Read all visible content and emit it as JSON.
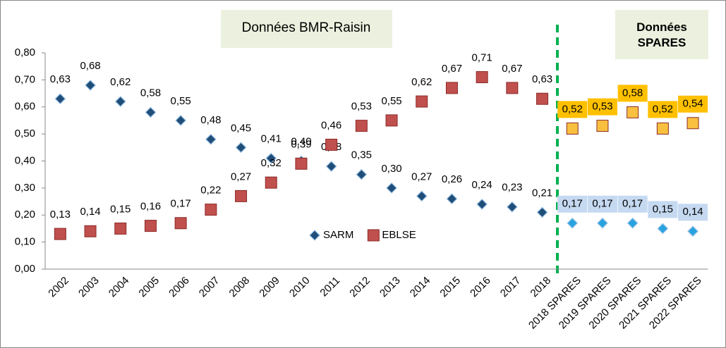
{
  "chart_data": {
    "type": "scatter",
    "categories": [
      "2002",
      "2003",
      "2004",
      "2005",
      "2006",
      "2007",
      "2008",
      "2009",
      "2010",
      "2011",
      "2012",
      "2013",
      "2014",
      "2015",
      "2016",
      "2017",
      "2018",
      "2018 SPARES",
      "2019 SPARES",
      "2020 SPARES",
      "2021 SPARES",
      "2022 SPARES"
    ],
    "series": [
      {
        "name": "SARM",
        "marker": "diamond",
        "color": "#1f4e79",
        "point_colors": [
          "#1f4e79",
          "#1f4e79",
          "#1f4e79",
          "#1f4e79",
          "#1f4e79",
          "#1f4e79",
          "#1f4e79",
          "#1f4e79",
          "#1f4e79",
          "#1f4e79",
          "#1f4e79",
          "#1f4e79",
          "#1f4e79",
          "#1f4e79",
          "#1f4e79",
          "#1f4e79",
          "#1f4e79",
          "#29a3df",
          "#29a3df",
          "#29a3df",
          "#29a3df",
          "#29a3df"
        ],
        "label_colors": [
          "none",
          "none",
          "none",
          "none",
          "none",
          "none",
          "none",
          "none",
          "none",
          "none",
          "none",
          "none",
          "none",
          "none",
          "none",
          "none",
          "none",
          "#c5d9f1",
          "#c5d9f1",
          "#c5d9f1",
          "#c5d9f1",
          "#c5d9f1"
        ],
        "values": [
          0.63,
          0.68,
          0.62,
          0.58,
          0.55,
          0.48,
          0.45,
          0.41,
          0.4,
          0.38,
          0.35,
          0.3,
          0.27,
          0.26,
          0.24,
          0.23,
          0.21,
          0.17,
          0.17,
          0.17,
          0.15,
          0.14
        ],
        "value_labels": [
          "0,63",
          "0,68",
          "0,62",
          "0,58",
          "0,55",
          "0,48",
          "0,45",
          "0,41",
          "0,40",
          "0,38",
          "0,35",
          "0,30",
          "0,27",
          "0,26",
          "0,24",
          "0,23",
          "0,21",
          "0,17",
          "0,17",
          "0,17",
          "0,15",
          "0,14"
        ]
      },
      {
        "name": "EBLSE",
        "marker": "square",
        "color": "#c0504d",
        "point_colors": [
          "#c0504d",
          "#c0504d",
          "#c0504d",
          "#c0504d",
          "#c0504d",
          "#c0504d",
          "#c0504d",
          "#c0504d",
          "#c0504d",
          "#c0504d",
          "#c0504d",
          "#c0504d",
          "#c0504d",
          "#c0504d",
          "#c0504d",
          "#c0504d",
          "#c0504d",
          "#f9c03f",
          "#f9c03f",
          "#f9c03f",
          "#f9c03f",
          "#f9c03f"
        ],
        "label_colors": [
          "none",
          "none",
          "none",
          "none",
          "none",
          "none",
          "none",
          "none",
          "none",
          "none",
          "none",
          "none",
          "none",
          "none",
          "none",
          "none",
          "none",
          "#ffc000",
          "#ffc000",
          "#ffc000",
          "#ffc000",
          "#ffc000"
        ],
        "values": [
          0.13,
          0.14,
          0.15,
          0.16,
          0.17,
          0.22,
          0.27,
          0.32,
          0.39,
          0.46,
          0.53,
          0.55,
          0.62,
          0.67,
          0.71,
          0.67,
          0.63,
          0.52,
          0.53,
          0.58,
          0.52,
          0.54
        ],
        "value_labels": [
          "0,13",
          "0,14",
          "0,15",
          "0,16",
          "0,17",
          "0,22",
          "0,27",
          "0,32",
          "0,39",
          "0,46",
          "0,53",
          "0,55",
          "0,62",
          "0,67",
          "0,71",
          "0,67",
          "0,63",
          "0,52",
          "0,53",
          "0,58",
          "0,52",
          "0,54"
        ]
      }
    ],
    "ylim": [
      0,
      0.8
    ],
    "yticks": [
      {
        "value": 0,
        "label": "0,00"
      },
      {
        "value": 0.1,
        "label": "0,10"
      },
      {
        "value": 0.2,
        "label": "0,20"
      },
      {
        "value": 0.3,
        "label": "0,30"
      },
      {
        "value": 0.4,
        "label": "0,40"
      },
      {
        "value": 0.5,
        "label": "0,50"
      },
      {
        "value": 0.6,
        "label": "0,60"
      },
      {
        "value": 0.7,
        "label": "0,70"
      },
      {
        "value": 0.8,
        "label": "0,80"
      }
    ],
    "annotations": [
      "Données BMR-Raisin",
      "Données SPARES"
    ],
    "legend": "bottom-center"
  }
}
